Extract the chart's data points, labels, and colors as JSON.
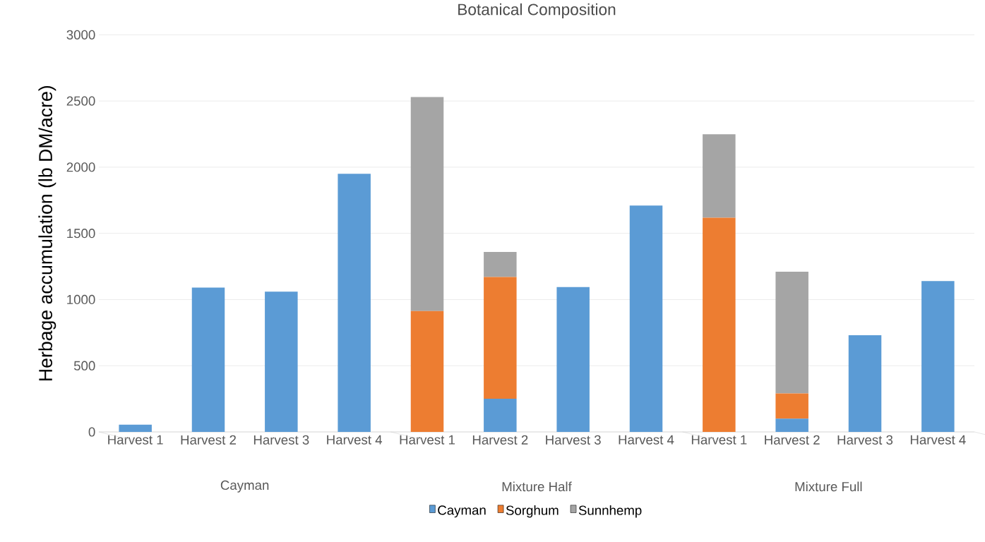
{
  "chart_data": {
    "type": "bar",
    "stacked": true,
    "title": "Botanical Composition",
    "ylabel": "Herbage accumulation (lb DM/acre)",
    "categories": [
      "Harvest 1",
      "Harvest 2",
      "Harvest 3",
      "Harvest 4",
      "Harvest 1",
      "Harvest 2",
      "Harvest 3",
      "Harvest 4",
      "Harvest 1",
      "Harvest 2",
      "Harvest 3",
      "Harvest 4"
    ],
    "series": [
      {
        "name": "Cayman",
        "color": "#5b9bd5",
        "values": [
          55,
          1090,
          1060,
          1950,
          0,
          250,
          1095,
          1710,
          0,
          100,
          730,
          1140
        ]
      },
      {
        "name": "Sorghum",
        "color": "#ed7d31",
        "values": [
          0,
          0,
          0,
          0,
          913,
          920,
          0,
          0,
          1618,
          190,
          0,
          0
        ]
      },
      {
        "name": "Sunnhemp",
        "color": "#a5a5a5",
        "values": [
          0,
          0,
          0,
          0,
          1617,
          190,
          0,
          0,
          630,
          920,
          0,
          0
        ]
      }
    ],
    "annotations": [
      "Cayman",
      "Mixture Half",
      "Mixture Full"
    ],
    "ylim": [
      0,
      3000
    ],
    "yticks": [
      0,
      500,
      1000,
      1500,
      2000,
      2500,
      3000
    ],
    "grid": "y",
    "legend": "bottom"
  }
}
